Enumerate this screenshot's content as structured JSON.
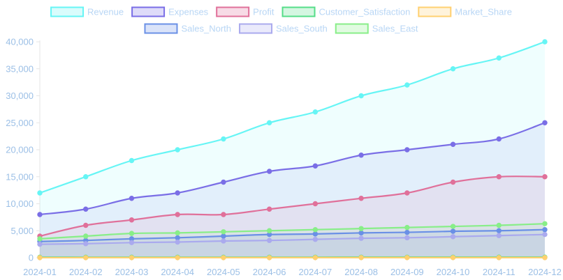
{
  "chart_data": {
    "type": "area",
    "categories": [
      "2024-01",
      "2024-02",
      "2024-03",
      "2024-04",
      "2024-05",
      "2024-06",
      "2024-07",
      "2024-08",
      "2024-09",
      "2024-10",
      "2024-11",
      "2024-12"
    ],
    "ylim": [
      0,
      40000
    ],
    "yticks": [
      0,
      5000,
      10000,
      15000,
      20000,
      25000,
      30000,
      35000,
      40000
    ],
    "ytick_labels": [
      "0",
      "5,000",
      "10,000",
      "15,000",
      "20,000",
      "25,000",
      "30,000",
      "35,000",
      "40,000"
    ],
    "grid": false,
    "legend_position": "top",
    "series": [
      {
        "name": "Revenue",
        "color": "#66f5f5",
        "fill": true,
        "values": [
          12000,
          15000,
          18000,
          20000,
          22000,
          25000,
          27000,
          30000,
          32000,
          35000,
          37000,
          40000
        ]
      },
      {
        "name": "Expenses",
        "color": "#7a6ee6",
        "fill": true,
        "values": [
          8000,
          9000,
          11000,
          12000,
          14000,
          16000,
          17000,
          19000,
          20000,
          21000,
          22000,
          25000
        ]
      },
      {
        "name": "Profit",
        "color": "#e0709a",
        "fill": true,
        "values": [
          4000,
          6000,
          7000,
          8000,
          8000,
          9000,
          10000,
          11000,
          12000,
          14000,
          15000,
          15000
        ]
      },
      {
        "name": "Customer_Satisfaction",
        "color": "#55dd88",
        "fill": true,
        "values": [
          85,
          87,
          88,
          90,
          89,
          91,
          92,
          93,
          94,
          95,
          96,
          97
        ]
      },
      {
        "name": "Market_Share",
        "color": "#ffd070",
        "fill": true,
        "values": [
          10,
          11,
          12,
          13,
          13,
          14,
          15,
          16,
          17,
          18,
          19,
          20
        ]
      },
      {
        "name": "Sales_North",
        "color": "#6a90e6",
        "fill": true,
        "values": [
          3000,
          3200,
          3500,
          3700,
          4000,
          4300,
          4400,
          4600,
          4700,
          4900,
          5000,
          5200
        ]
      },
      {
        "name": "Sales_South",
        "color": "#aaaaee",
        "fill": true,
        "values": [
          2500,
          2600,
          2800,
          2900,
          3100,
          3200,
          3400,
          3600,
          3700,
          3900,
          4100,
          4300
        ]
      },
      {
        "name": "Sales_East",
        "color": "#88ee88",
        "fill": true,
        "values": [
          3500,
          4000,
          4500,
          4600,
          4800,
          5000,
          5200,
          5400,
          5600,
          5800,
          6000,
          6300
        ]
      }
    ]
  }
}
